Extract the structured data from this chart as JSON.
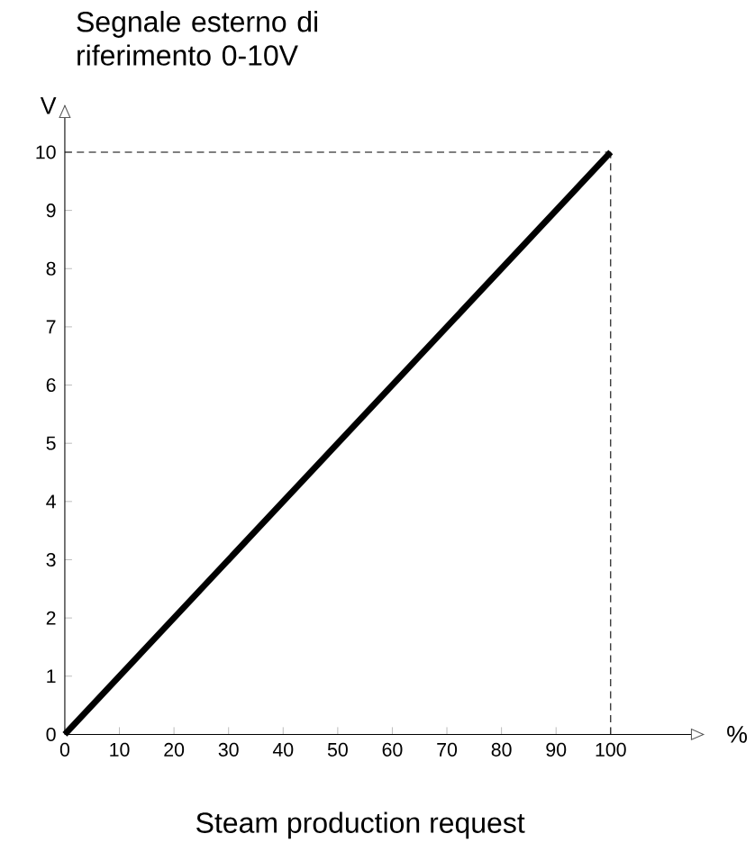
{
  "chart_data": {
    "type": "line",
    "title": "Segnale esterno di riferimento 0-10V",
    "xlabel": "%",
    "ylabel": "V",
    "annotations": [
      "Steam production request"
    ],
    "x": [
      0,
      100
    ],
    "series": [
      {
        "color": "#000000",
        "values": [
          0,
          10
        ]
      }
    ],
    "xlim": [
      0,
      117
    ],
    "ylim": [
      0,
      10.8
    ],
    "xticks": [
      0,
      10,
      20,
      30,
      40,
      50,
      60,
      70,
      80,
      90,
      100
    ],
    "yticks": [
      0,
      1,
      2,
      3,
      4,
      5,
      6,
      7,
      8,
      9,
      10
    ],
    "ref_lines": [
      {
        "axis": "x",
        "value": 100,
        "line_style": "dashed"
      },
      {
        "axis": "y",
        "value": 10,
        "line_style": "dashed"
      }
    ],
    "grid": false,
    "marker": "none",
    "line_style": "solid"
  }
}
